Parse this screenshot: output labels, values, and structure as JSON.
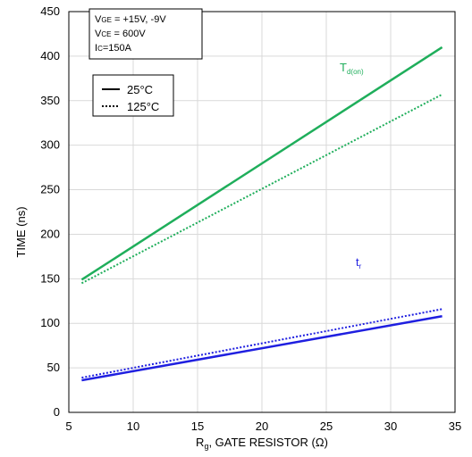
{
  "chart_data": {
    "type": "line",
    "title": "",
    "xlabel": "Rg, GATE RESISTOR (Ω)",
    "xlabel_main": "R",
    "xlabel_sub": "g",
    "xlabel_rest": ", GATE RESISTOR (Ω)",
    "ylabel": "TIME (ns)",
    "xlim": [
      5,
      35
    ],
    "ylim": [
      0,
      450
    ],
    "xticks": [
      5,
      10,
      15,
      20,
      25,
      30,
      35
    ],
    "yticks": [
      0,
      50,
      100,
      150,
      200,
      250,
      300,
      350,
      400,
      450
    ],
    "grid": true,
    "conditions": {
      "line1_main": "V",
      "line1_sub": "GE",
      "line1_rest": " = +15V, -9V",
      "line2_main": "V",
      "line2_sub": "CE",
      "line2_rest": " = 600V",
      "line3_main": "I",
      "line3_sub": "C",
      "line3_rest": "=150A"
    },
    "legend": {
      "placement": "top-left",
      "entries": [
        {
          "label": "25°C",
          "style": "solid"
        },
        {
          "label": "125°C",
          "style": "dotted"
        }
      ]
    },
    "annotations": {
      "td_on_main": "T",
      "td_on_sub": "d(on)",
      "tr_main": "t",
      "tr_sub": "r"
    },
    "series": [
      {
        "name": "Td(on) 25°C",
        "color": "#1fae5b",
        "style": "solid",
        "x": [
          6,
          34
        ],
        "y": [
          149,
          410
        ]
      },
      {
        "name": "Td(on) 125°C",
        "color": "#1fae5b",
        "style": "dotted",
        "x": [
          6,
          34
        ],
        "y": [
          145,
          357
        ]
      },
      {
        "name": "tr 25°C",
        "color": "#1f1fe0",
        "style": "solid",
        "x": [
          6,
          34
        ],
        "y": [
          36,
          108
        ]
      },
      {
        "name": "tr 125°C",
        "color": "#1f1fe0",
        "style": "dotted",
        "x": [
          6,
          34
        ],
        "y": [
          39,
          116
        ]
      }
    ]
  }
}
